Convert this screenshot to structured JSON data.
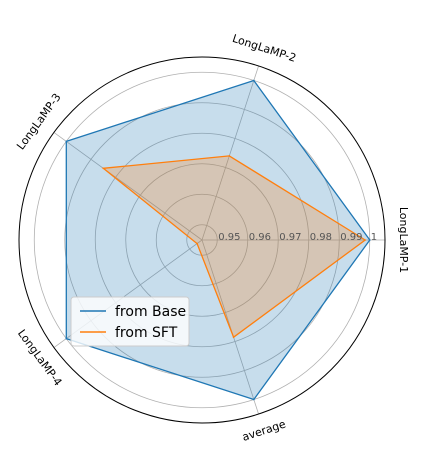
{
  "chart_data": {
    "type": "radar",
    "title": "",
    "categories": [
      "LongLaMP-1",
      "LongLaMP-2",
      "LongLaMP-3",
      "LongLaMP-4",
      "average"
    ],
    "rlim": [
      0.945,
      1.005
    ],
    "rticks": [
      0.95,
      0.96,
      0.97,
      0.98,
      0.99,
      1.0
    ],
    "rtick_labels": [
      "0.95",
      "0.96",
      "0.97",
      "0.98",
      "0.99",
      "1"
    ],
    "grid": true,
    "legend_position": "lower-left",
    "series": [
      {
        "name": "from Base",
        "values": [
          1.0,
          1.0,
          1.0,
          1.0,
          1.0
        ],
        "color": "#1f77b4"
      },
      {
        "name": "from SFT",
        "values": [
          0.9985,
          0.974,
          0.985,
          0.947,
          0.9785
        ],
        "color": "#ff7f0e"
      }
    ]
  }
}
